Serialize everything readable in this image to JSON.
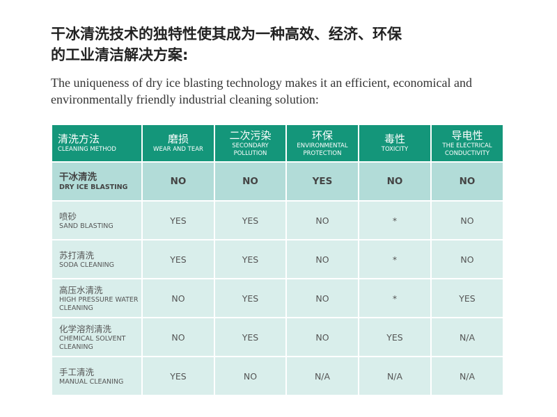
{
  "title_cn": [
    "干冰清洗技术的独特性使其成为一种高效、经济、环保",
    "的工业清洁解决方案:"
  ],
  "subtitle_en": "The uniqueness of dry ice blasting technology makes it an efficient, economical and environmentally friendly industrial cleaning solution:",
  "accent_color": "#14967a",
  "headers": [
    {
      "cn": "清洗方法",
      "en": "CLEANING METHOD"
    },
    {
      "cn": "磨损",
      "en": "WEAR AND TEAR"
    },
    {
      "cn": "二次污染",
      "en": "SECONDARY POLLUTION"
    },
    {
      "cn": "环保",
      "en": "ENVIRONMENTAL PROTECTION"
    },
    {
      "cn": "毒性",
      "en": "TOXICITY"
    },
    {
      "cn": "导电性",
      "en": "THE ELECTRICAL CONDUCTIVITY"
    }
  ],
  "rows": [
    {
      "cn": "干冰清洗",
      "en": "DRY ICE BLASTING",
      "values": [
        "NO",
        "NO",
        "YES",
        "NO",
        "NO"
      ]
    },
    {
      "cn": "喷砂",
      "en": "SAND BLASTING",
      "values": [
        "YES",
        "YES",
        "NO",
        "*",
        "NO"
      ]
    },
    {
      "cn": "苏打清洗",
      "en": "SODA CLEANING",
      "values": [
        "YES",
        "YES",
        "NO",
        "*",
        "NO"
      ]
    },
    {
      "cn": "高压水清洗",
      "en": "HIGH PRESSURE WATER CLEANING",
      "values": [
        "NO",
        "YES",
        "NO",
        "*",
        "YES"
      ]
    },
    {
      "cn": "化学溶剂清洗",
      "en": "CHEMICAL SOLVENT CLEANING",
      "values": [
        "NO",
        "YES",
        "NO",
        "YES",
        "N/A"
      ]
    },
    {
      "cn": "手工清洗",
      "en": "MANUAL CLEANING",
      "values": [
        "YES",
        "NO",
        "N/A",
        "N/A",
        "N/A"
      ]
    }
  ]
}
